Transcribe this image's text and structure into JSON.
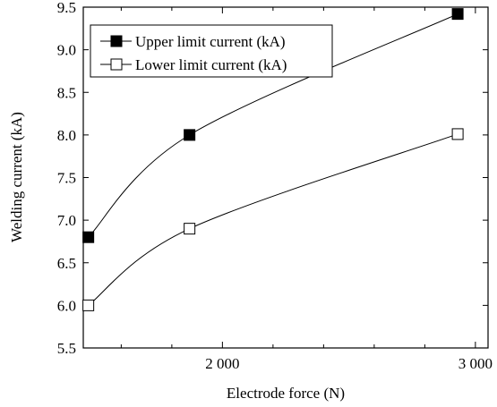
{
  "chart_data": {
    "type": "line",
    "xlabel": "Electrode force (N)",
    "ylabel": "Welding current (kA)",
    "xlim": [
      1450,
      3050
    ],
    "ylim": [
      5.5,
      9.5
    ],
    "x_ticks": [
      2000,
      3000
    ],
    "x_tick_labels": [
      "2 000",
      "3 000"
    ],
    "x_minor_step": 200,
    "y_ticks": [
      5.5,
      6.0,
      6.5,
      7.0,
      7.5,
      8.0,
      8.5,
      9.0,
      9.5
    ],
    "y_tick_labels": [
      "5.5",
      "6.0",
      "6.5",
      "7.0",
      "7.5",
      "8.0",
      "8.5",
      "9.0",
      "9.5"
    ],
    "grid": false,
    "legend_position": "top-left",
    "series": [
      {
        "name": "Upper limit current (kA)",
        "marker": "filled-square",
        "color": "#000000",
        "x": [
          1470,
          1870,
          2930
        ],
        "y": [
          6.8,
          8.0,
          9.42
        ]
      },
      {
        "name": "Lower limit current (kA)",
        "marker": "open-square",
        "color": "#000000",
        "x": [
          1470,
          1870,
          2930
        ],
        "y": [
          6.0,
          6.9,
          8.01
        ]
      }
    ]
  }
}
